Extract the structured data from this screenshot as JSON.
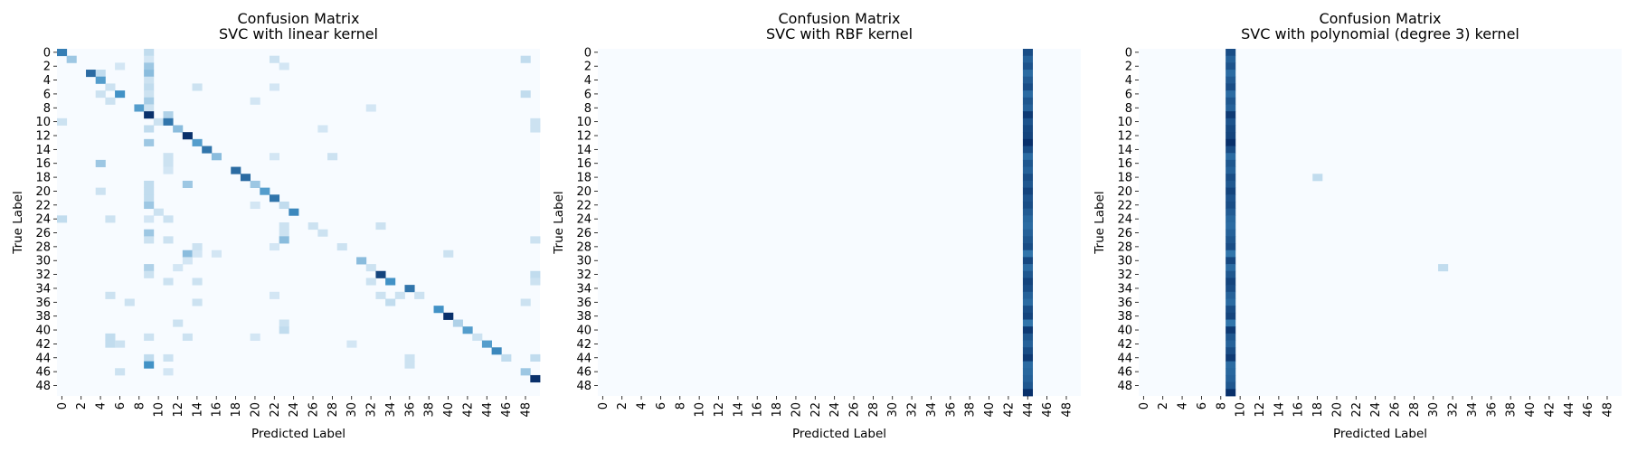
{
  "figure": {
    "background": "#ffffff"
  },
  "colormap": {
    "name": "Blues",
    "low": "#f7fbff",
    "high": "#08306b"
  },
  "chart_data": [
    {
      "type": "heatmap",
      "title": "Confusion Matrix\nSVC with linear kernel",
      "xlabel": "Predicted Label",
      "ylabel": "True Label",
      "n_classes": 50,
      "x_ticks": [
        0,
        2,
        4,
        6,
        8,
        10,
        12,
        14,
        16,
        18,
        20,
        22,
        24,
        26,
        28,
        30,
        32,
        34,
        36,
        38,
        40,
        42,
        44,
        46,
        48
      ],
      "y_ticks": [
        0,
        2,
        4,
        6,
        8,
        10,
        12,
        14,
        16,
        18,
        20,
        22,
        24,
        26,
        28,
        30,
        32,
        34,
        36,
        38,
        40,
        42,
        44,
        46,
        48
      ],
      "default_value": 0,
      "value_range": [
        0,
        1
      ],
      "cells": [
        [
          0,
          0,
          0.6
        ],
        [
          0,
          9,
          0.15
        ],
        [
          1,
          1,
          0.25
        ],
        [
          1,
          9,
          0.1
        ],
        [
          1,
          22,
          0.12
        ],
        [
          1,
          48,
          0.15
        ],
        [
          2,
          6,
          0.1
        ],
        [
          2,
          9,
          0.25
        ],
        [
          2,
          23,
          0.1
        ],
        [
          3,
          3,
          0.7
        ],
        [
          3,
          4,
          0.15
        ],
        [
          3,
          9,
          0.3
        ],
        [
          4,
          4,
          0.45
        ],
        [
          4,
          9,
          0.12
        ],
        [
          5,
          5,
          0.12
        ],
        [
          5,
          9,
          0.15
        ],
        [
          5,
          14,
          0.12
        ],
        [
          5,
          22,
          0.1
        ],
        [
          6,
          4,
          0.12
        ],
        [
          6,
          6,
          0.5
        ],
        [
          6,
          9,
          0.12
        ],
        [
          6,
          48,
          0.15
        ],
        [
          7,
          5,
          0.12
        ],
        [
          7,
          9,
          0.22
        ],
        [
          7,
          20,
          0.1
        ],
        [
          8,
          8,
          0.45
        ],
        [
          8,
          9,
          0.12
        ],
        [
          8,
          32,
          0.1
        ],
        [
          9,
          9,
          1.0
        ],
        [
          9,
          11,
          0.2
        ],
        [
          10,
          0,
          0.12
        ],
        [
          10,
          10,
          0.12
        ],
        [
          10,
          11,
          0.65
        ],
        [
          10,
          49,
          0.12
        ],
        [
          11,
          9,
          0.15
        ],
        [
          11,
          12,
          0.3
        ],
        [
          11,
          27,
          0.1
        ],
        [
          11,
          49,
          0.12
        ],
        [
          12,
          13,
          1.0
        ],
        [
          13,
          9,
          0.25
        ],
        [
          13,
          14,
          0.45
        ],
        [
          14,
          15,
          0.65
        ],
        [
          15,
          11,
          0.12
        ],
        [
          15,
          16,
          0.3
        ],
        [
          15,
          22,
          0.1
        ],
        [
          15,
          28,
          0.12
        ],
        [
          16,
          4,
          0.25
        ],
        [
          16,
          11,
          0.12
        ],
        [
          17,
          11,
          0.1
        ],
        [
          17,
          18,
          0.7
        ],
        [
          18,
          19,
          0.7
        ],
        [
          19,
          9,
          0.15
        ],
        [
          19,
          13,
          0.25
        ],
        [
          19,
          20,
          0.25
        ],
        [
          20,
          4,
          0.12
        ],
        [
          20,
          9,
          0.15
        ],
        [
          20,
          21,
          0.45
        ],
        [
          21,
          9,
          0.15
        ],
        [
          21,
          22,
          0.65
        ],
        [
          22,
          9,
          0.25
        ],
        [
          22,
          20,
          0.1
        ],
        [
          22,
          23,
          0.15
        ],
        [
          23,
          10,
          0.12
        ],
        [
          23,
          24,
          0.55
        ],
        [
          24,
          0,
          0.15
        ],
        [
          24,
          5,
          0.12
        ],
        [
          24,
          9,
          0.1
        ],
        [
          24,
          11,
          0.12
        ],
        [
          25,
          23,
          0.12
        ],
        [
          25,
          26,
          0.12
        ],
        [
          25,
          33,
          0.12
        ],
        [
          26,
          9,
          0.25
        ],
        [
          26,
          23,
          0.12
        ],
        [
          26,
          27,
          0.12
        ],
        [
          27,
          9,
          0.12
        ],
        [
          27,
          11,
          0.12
        ],
        [
          27,
          23,
          0.3
        ],
        [
          27,
          49,
          0.12
        ],
        [
          28,
          14,
          0.12
        ],
        [
          28,
          22,
          0.1
        ],
        [
          28,
          29,
          0.12
        ],
        [
          29,
          13,
          0.3
        ],
        [
          29,
          16,
          0.1
        ],
        [
          29,
          14,
          0.1
        ],
        [
          29,
          40,
          0.12
        ],
        [
          30,
          13,
          0.1
        ],
        [
          30,
          31,
          0.3
        ],
        [
          31,
          9,
          0.2
        ],
        [
          31,
          12,
          0.1
        ],
        [
          31,
          32,
          0.12
        ],
        [
          32,
          9,
          0.12
        ],
        [
          32,
          33,
          0.9
        ],
        [
          32,
          49,
          0.15
        ],
        [
          33,
          11,
          0.12
        ],
        [
          33,
          14,
          0.12
        ],
        [
          33,
          32,
          0.12
        ],
        [
          33,
          34,
          0.5
        ],
        [
          33,
          49,
          0.12
        ],
        [
          34,
          36,
          0.65
        ],
        [
          35,
          5,
          0.12
        ],
        [
          35,
          22,
          0.1
        ],
        [
          35,
          33,
          0.12
        ],
        [
          35,
          35,
          0.12
        ],
        [
          35,
          37,
          0.12
        ],
        [
          36,
          7,
          0.12
        ],
        [
          36,
          14,
          0.12
        ],
        [
          36,
          34,
          0.15
        ],
        [
          36,
          48,
          0.12
        ],
        [
          37,
          39,
          0.5
        ],
        [
          38,
          40,
          1.0
        ],
        [
          39,
          12,
          0.12
        ],
        [
          39,
          23,
          0.12
        ],
        [
          39,
          41,
          0.2
        ],
        [
          40,
          23,
          0.15
        ],
        [
          40,
          42,
          0.45
        ],
        [
          41,
          5,
          0.15
        ],
        [
          41,
          9,
          0.12
        ],
        [
          41,
          13,
          0.12
        ],
        [
          41,
          20,
          0.1
        ],
        [
          41,
          43,
          0.12
        ],
        [
          42,
          5,
          0.15
        ],
        [
          42,
          6,
          0.12
        ],
        [
          42,
          30,
          0.1
        ],
        [
          42,
          44,
          0.45
        ],
        [
          43,
          45,
          0.55
        ],
        [
          44,
          9,
          0.15
        ],
        [
          44,
          11,
          0.12
        ],
        [
          44,
          36,
          0.12
        ],
        [
          44,
          46,
          0.15
        ],
        [
          44,
          49,
          0.15
        ],
        [
          45,
          9,
          0.5
        ],
        [
          45,
          36,
          0.12
        ],
        [
          46,
          6,
          0.12
        ],
        [
          46,
          11,
          0.1
        ],
        [
          46,
          48,
          0.25
        ],
        [
          47,
          49,
          1.0
        ]
      ]
    },
    {
      "type": "heatmap",
      "title": "Confusion Matrix\nSVC with RBF kernel",
      "xlabel": "Predicted Label",
      "ylabel": "True Label",
      "n_classes": 50,
      "x_ticks": [
        0,
        2,
        4,
        6,
        8,
        10,
        12,
        14,
        16,
        18,
        20,
        22,
        24,
        26,
        28,
        30,
        32,
        34,
        36,
        38,
        40,
        42,
        44,
        46,
        48
      ],
      "y_ticks": [
        0,
        2,
        4,
        6,
        8,
        10,
        12,
        14,
        16,
        18,
        20,
        22,
        24,
        26,
        28,
        30,
        32,
        34,
        36,
        38,
        40,
        42,
        44,
        46,
        48
      ],
      "default_value": 0,
      "value_range": [
        0,
        1
      ],
      "column_values": {
        "column": 44,
        "values": [
          0.85,
          0.75,
          0.82,
          0.7,
          0.78,
          0.85,
          0.7,
          0.8,
          0.75,
          0.95,
          0.82,
          0.88,
          0.9,
          1.0,
          0.85,
          0.7,
          0.8,
          0.75,
          0.85,
          0.8,
          0.9,
          0.82,
          0.85,
          0.78,
          0.72,
          0.7,
          0.75,
          0.8,
          0.85,
          0.65,
          0.88,
          0.7,
          0.8,
          0.9,
          0.85,
          0.75,
          0.7,
          0.85,
          0.9,
          0.65,
          0.95,
          0.8,
          0.75,
          0.85,
          0.95,
          0.7,
          0.72,
          0.75,
          0.8,
          1.0
        ]
      }
    },
    {
      "type": "heatmap",
      "title": "Confusion Matrix\nSVC with polynomial (degree 3) kernel",
      "xlabel": "Predicted Label",
      "ylabel": "True Label",
      "n_classes": 50,
      "x_ticks": [
        0,
        2,
        4,
        6,
        8,
        10,
        12,
        14,
        16,
        18,
        20,
        22,
        24,
        26,
        28,
        30,
        32,
        34,
        36,
        38,
        40,
        42,
        44,
        46,
        48
      ],
      "y_ticks": [
        0,
        2,
        4,
        6,
        8,
        10,
        12,
        14,
        16,
        18,
        20,
        22,
        24,
        26,
        28,
        30,
        32,
        34,
        36,
        38,
        40,
        42,
        44,
        46,
        48
      ],
      "default_value": 0,
      "value_range": [
        0,
        1
      ],
      "column_values": {
        "column": 9,
        "values": [
          0.85,
          0.75,
          0.82,
          0.7,
          0.78,
          0.85,
          0.7,
          0.8,
          0.75,
          0.95,
          0.82,
          0.88,
          0.9,
          1.0,
          0.85,
          0.7,
          0.8,
          0.75,
          0.85,
          0.8,
          0.9,
          0.82,
          0.85,
          0.78,
          0.72,
          0.7,
          0.75,
          0.8,
          0.85,
          0.65,
          0.88,
          0.7,
          0.8,
          0.9,
          0.85,
          0.75,
          0.7,
          0.85,
          0.9,
          0.65,
          0.95,
          0.8,
          0.75,
          0.85,
          0.95,
          0.7,
          0.72,
          0.75,
          0.8,
          1.0
        ]
      },
      "cells": [
        [
          18,
          18,
          0.15
        ],
        [
          31,
          31,
          0.15
        ]
      ]
    }
  ]
}
